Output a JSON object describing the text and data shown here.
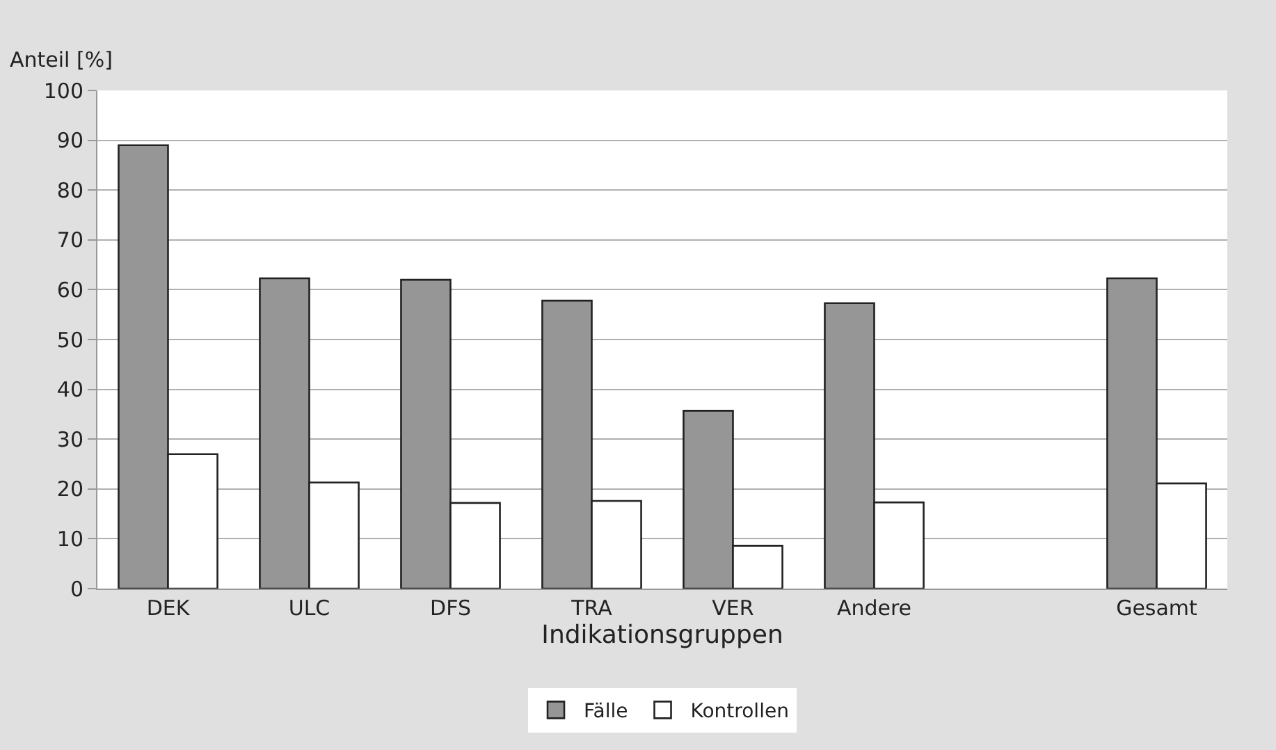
{
  "chart_data": {
    "type": "bar",
    "xlabel": "Indikationsgruppen",
    "ylabel": "Anteil [%]",
    "categories": [
      "DEK",
      "ULC",
      "DFS",
      "TRA",
      "VER",
      "Andere",
      null,
      "Gesamt"
    ],
    "series": [
      {
        "name": "Fälle",
        "color": "#969696",
        "values": [
          89,
          62.3,
          62,
          57.8,
          35.7,
          57.3,
          null,
          62.3
        ]
      },
      {
        "name": "Kontrollen",
        "color": "#ffffff",
        "values": [
          27,
          21.3,
          17.2,
          17.6,
          8.6,
          17.3,
          null,
          21.1
        ]
      }
    ],
    "ylim": [
      0,
      100
    ],
    "yticks": [
      0,
      10,
      20,
      30,
      40,
      50,
      60,
      70,
      80,
      90,
      100
    ],
    "grid": "y",
    "legend": "bottom"
  }
}
